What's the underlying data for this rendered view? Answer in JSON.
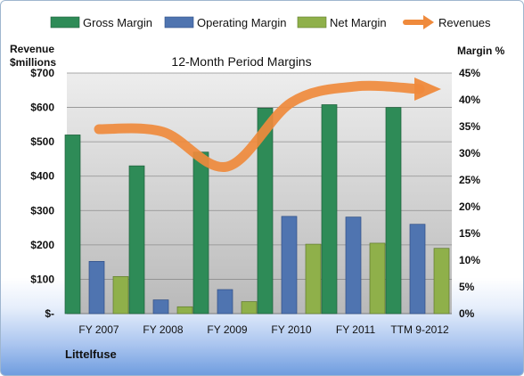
{
  "chart_data": {
    "type": "bar",
    "title": "12-Month Period Margins",
    "ylabel_left": [
      "Revenue",
      "$millions"
    ],
    "ylabel_right": "Margin %",
    "company": "Littelfuse",
    "categories": [
      "FY 2007",
      "FY 2008",
      "FY 2009",
      "FY 2010",
      "FY 2011",
      "TTM 9-2012"
    ],
    "series": [
      {
        "name": "Gross Margin",
        "axis": "left",
        "color": "#2e8b57",
        "values": [
          520,
          430,
          470,
          598,
          608,
          600
        ]
      },
      {
        "name": "Operating Margin",
        "axis": "left",
        "color": "#4f74b0",
        "values": [
          152,
          40,
          70,
          283,
          281,
          260
        ]
      },
      {
        "name": "Net Margin",
        "axis": "left",
        "color": "#8fb04a",
        "values": [
          108,
          20,
          35,
          202,
          205,
          190
        ]
      },
      {
        "name": "Revenues",
        "axis": "right",
        "type": "line",
        "color": "#ef8a3c",
        "values": [
          34.5,
          34.0,
          27.5,
          39.5,
          42.5,
          42.0
        ]
      }
    ],
    "left_axis": {
      "ylim": [
        0,
        700
      ],
      "ticks": [
        0,
        100,
        200,
        300,
        400,
        500,
        600,
        700
      ],
      "tick_labels": [
        "$-",
        "$100",
        "$200",
        "$300",
        "$400",
        "$500",
        "$600",
        "$700"
      ]
    },
    "right_axis": {
      "ylim": [
        0,
        45
      ],
      "ticks": [
        0,
        5,
        10,
        15,
        20,
        25,
        30,
        35,
        40,
        45
      ],
      "tick_labels": [
        "0%",
        "5%",
        "10%",
        "15%",
        "20%",
        "25%",
        "30%",
        "35%",
        "40%",
        "45%"
      ]
    },
    "grid": true,
    "legend": "top"
  }
}
